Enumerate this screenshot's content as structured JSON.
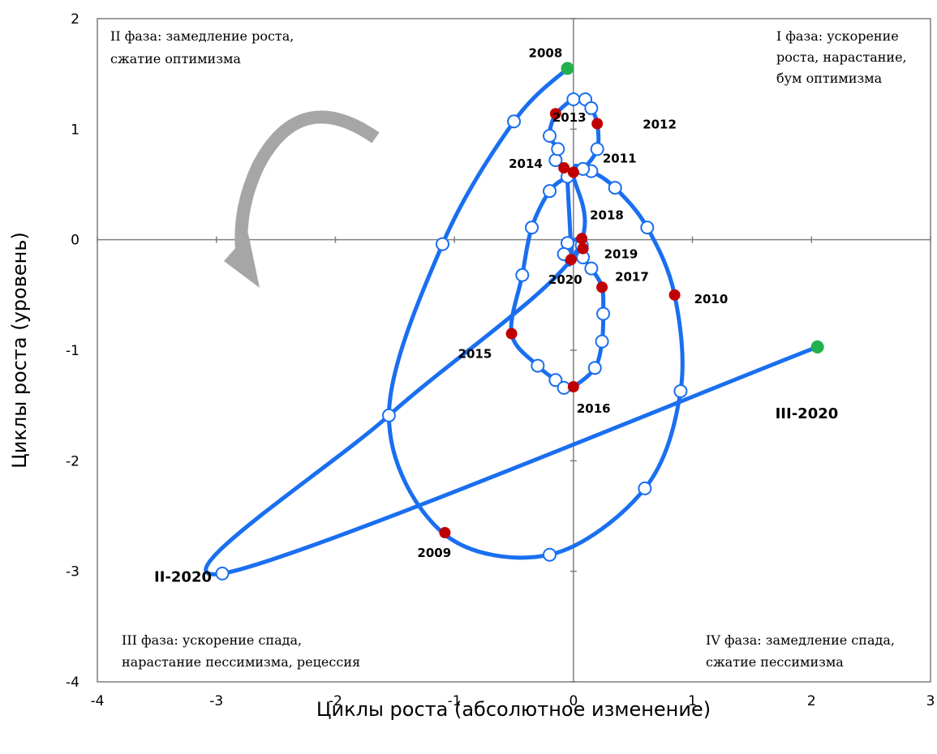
{
  "chart_data": {
    "type": "scatter",
    "title": "",
    "xlabel": "Циклы роста (абсолютное изменение)",
    "ylabel": "Циклы роста (уровень)",
    "xlim": [
      -4,
      3
    ],
    "ylim": [
      -4,
      2
    ],
    "x_ticks": [
      "-4",
      "-3",
      "-2",
      "-1",
      "0",
      "1",
      "2",
      "3"
    ],
    "y_ticks": [
      "2",
      "1",
      "0",
      "-1",
      "-2",
      "-3",
      "-4"
    ],
    "grid": false,
    "line_color": "#1a6ff0",
    "colors": {
      "year_point": "#c00000",
      "quarter_point": "#ffffff",
      "end_point": "#22b14c",
      "arrow": "#a6a6a6"
    },
    "phase_labels": {
      "top_left": [
        "II фаза: замедление роста,",
        "сжатие оптимизма"
      ],
      "top_right": [
        "I фаза: ускорение",
        "роста, нарастание,",
        "бум оптимизма"
      ],
      "bottom_left": [
        "III фаза: ускорение спада,",
        "нарастание пессимизма, рецессия"
      ],
      "bottom_right": [
        "IV фаза: замедление спада,",
        "сжатие пессимизма"
      ]
    },
    "path": [
      [
        -0.05,
        1.55
      ],
      [
        -0.5,
        1.07
      ],
      [
        -1.1,
        -0.04
      ],
      [
        -1.55,
        -1.59
      ],
      [
        -1.1,
        -2.65
      ],
      [
        -0.2,
        -2.85
      ],
      [
        0.6,
        -2.25
      ],
      [
        0.9,
        -1.37
      ],
      [
        0.85,
        -0.5
      ],
      [
        0.62,
        0.11
      ],
      [
        0.35,
        0.47
      ],
      [
        0.15,
        0.62
      ],
      [
        0.08,
        0.64
      ],
      [
        -0.05,
        0.57
      ],
      [
        -0.2,
        0.44
      ],
      [
        -0.35,
        0.11
      ],
      [
        -0.43,
        -0.32
      ],
      [
        -0.52,
        -0.85
      ],
      [
        -0.3,
        -1.14
      ],
      [
        -0.15,
        -1.27
      ],
      [
        -0.08,
        -1.34
      ],
      [
        0.0,
        -1.33
      ],
      [
        0.18,
        -1.16
      ],
      [
        0.24,
        -0.92
      ],
      [
        0.25,
        -0.67
      ],
      [
        0.24,
        -0.43
      ],
      [
        0.15,
        -0.26
      ],
      [
        0.08,
        -0.16
      ],
      [
        0.07,
        -0.05
      ],
      [
        0.07,
        0.01
      ],
      [
        -0.05,
        -0.03
      ],
      [
        -0.08,
        -0.13
      ],
      [
        -0.02,
        -0.18
      ],
      [
        -0.05,
        0.57
      ],
      [
        -0.02,
        0.6
      ],
      [
        -0.08,
        0.65
      ],
      [
        -0.15,
        0.72
      ],
      [
        -0.13,
        0.82
      ],
      [
        -0.2,
        0.94
      ],
      [
        -0.15,
        1.13
      ],
      [
        0.0,
        1.27
      ],
      [
        0.1,
        1.27
      ],
      [
        0.15,
        1.19
      ],
      [
        0.2,
        1.05
      ],
      [
        0.2,
        0.82
      ],
      [
        0.08,
        0.64
      ],
      [
        0.0,
        0.61
      ],
      [
        -0.02,
        -0.18
      ],
      [
        -1.55,
        -1.59
      ],
      [
        -2.95,
        -3.02
      ],
      [
        2.05,
        -0.97
      ]
    ],
    "quarter_points": [
      [
        -0.5,
        1.07
      ],
      [
        -1.1,
        -0.04
      ],
      [
        -1.55,
        -1.59
      ],
      [
        -0.2,
        -2.85
      ],
      [
        0.6,
        -2.25
      ],
      [
        0.9,
        -1.37
      ],
      [
        0.62,
        0.11
      ],
      [
        0.35,
        0.47
      ],
      [
        0.15,
        0.62
      ],
      [
        0.08,
        0.64
      ],
      [
        -0.05,
        0.57
      ],
      [
        -0.2,
        0.44
      ],
      [
        -0.35,
        0.11
      ],
      [
        -0.43,
        -0.32
      ],
      [
        -0.3,
        -1.14
      ],
      [
        -0.15,
        -1.27
      ],
      [
        -0.08,
        -1.34
      ],
      [
        0.18,
        -1.16
      ],
      [
        0.24,
        -0.92
      ],
      [
        0.25,
        -0.67
      ],
      [
        0.15,
        -0.26
      ],
      [
        0.08,
        -0.16
      ],
      [
        -0.05,
        -0.03
      ],
      [
        -0.08,
        -0.13
      ],
      [
        0.07,
        -0.05
      ],
      [
        -0.15,
        0.72
      ],
      [
        -0.13,
        0.82
      ],
      [
        -0.2,
        0.94
      ],
      [
        0.0,
        1.27
      ],
      [
        0.1,
        1.27
      ],
      [
        0.15,
        1.19
      ],
      [
        0.2,
        0.82
      ],
      [
        -2.95,
        -3.02
      ]
    ],
    "year_points": [
      {
        "label": "2009",
        "x": -1.08,
        "y": -2.65
      },
      {
        "label": "2010",
        "x": 0.85,
        "y": -0.5
      },
      {
        "label": "2011",
        "x": 0.0,
        "y": 0.61
      },
      {
        "label": "2012",
        "x": 0.2,
        "y": 1.05
      },
      {
        "label": "2013",
        "x": -0.15,
        "y": 1.14
      },
      {
        "label": "2014",
        "x": -0.08,
        "y": 0.65
      },
      {
        "label": "2015",
        "x": -0.52,
        "y": -0.85
      },
      {
        "label": "2016",
        "x": 0.0,
        "y": -1.33
      },
      {
        "label": "2017",
        "x": 0.24,
        "y": -0.43
      },
      {
        "label": "2018",
        "x": 0.07,
        "y": 0.01
      },
      {
        "label": "2019",
        "x": 0.08,
        "y": -0.08
      },
      {
        "label": "2020",
        "x": -0.02,
        "y": -0.18
      }
    ],
    "end_points": [
      {
        "label": "2008",
        "x": -0.05,
        "y": 1.55
      },
      {
        "label": "III-2020",
        "x": 2.05,
        "y": -0.97
      }
    ],
    "extra_labels": [
      {
        "label": "II-2020",
        "x": -2.95,
        "y": -3.02
      }
    ]
  }
}
